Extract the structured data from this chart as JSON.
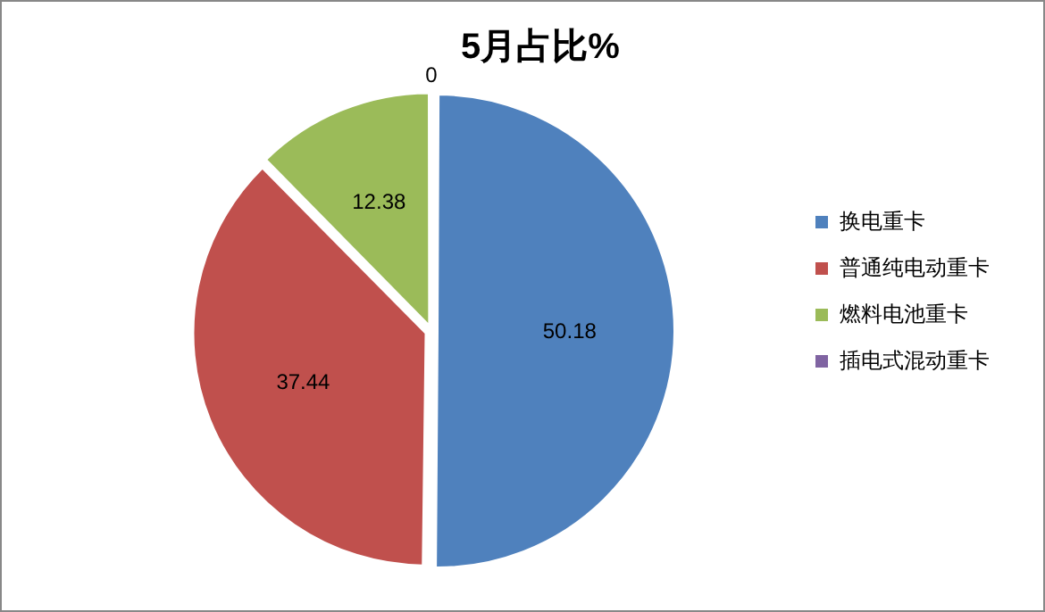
{
  "chart_data": {
    "type": "pie",
    "title": "5月占比%",
    "categories": [
      "换电重卡",
      "普通纯电动重卡",
      "燃料电池重卡",
      "插电式混动重卡"
    ],
    "values": [
      50.18,
      37.44,
      12.38,
      0
    ],
    "colors": [
      "#4f81bd",
      "#c0504d",
      "#9bbb59",
      "#8064a2"
    ],
    "value_labels": [
      "50.18",
      "37.44",
      "12.38",
      "0"
    ],
    "legend": "right"
  }
}
